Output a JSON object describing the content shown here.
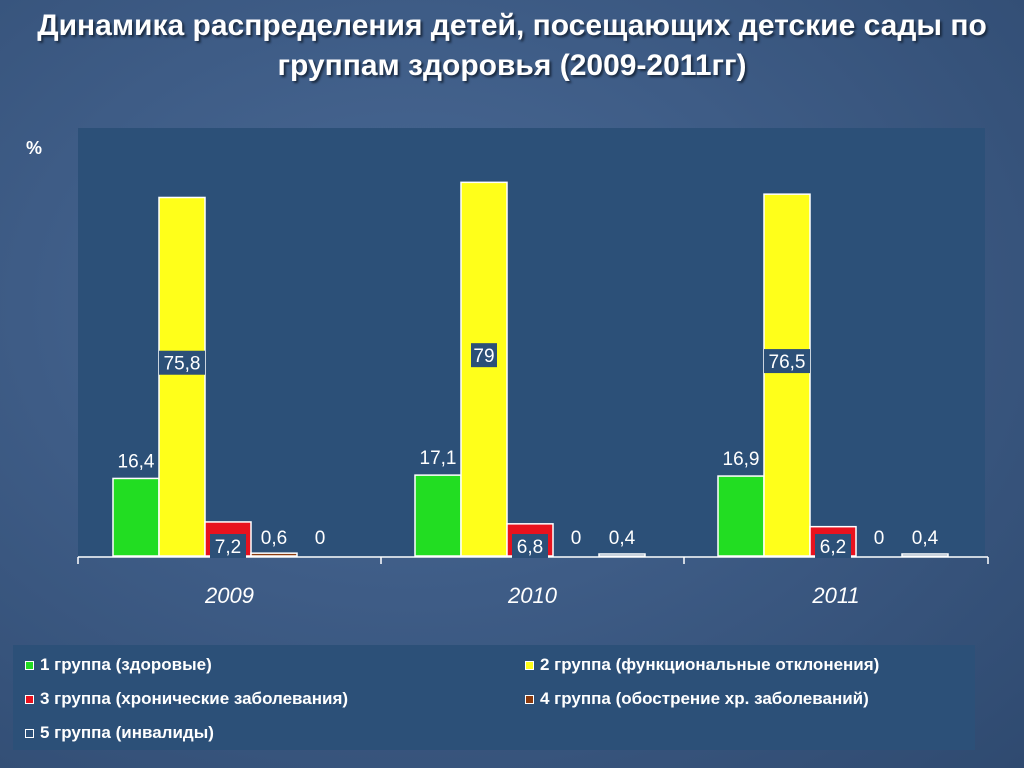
{
  "title": "Динамика распределения детей, посещающих детские сады по группам здоровья (2009-2011гг)",
  "chart_data": {
    "type": "bar",
    "title": "Динамика распределения детей, посещающих детские сады по группам здоровья (2009-2011гг)",
    "ylabel": "%",
    "xlabel": "",
    "categories": [
      "2009",
      "2010",
      "2011"
    ],
    "ylim": [
      0,
      80
    ],
    "grid": false,
    "legend_position": "bottom",
    "series": [
      {
        "name": "1 группа (здоровые)",
        "color": "#22dd22",
        "values": [
          16.4,
          17.1,
          16.9
        ],
        "labels": [
          "16,4",
          "17,1",
          "16,9"
        ]
      },
      {
        "name": "2 группа (функциональные отклонения)",
        "color": "#ffff1a",
        "values": [
          75.8,
          79,
          76.5
        ],
        "labels": [
          "75,8",
          "79",
          "76,5"
        ]
      },
      {
        "name": "3 группа (хронические заболевания)",
        "color": "#e8121e",
        "values": [
          7.2,
          6.8,
          6.2
        ],
        "labels": [
          "7,2",
          "6,8",
          "6,2"
        ]
      },
      {
        "name": "4 группа (обострение хр. заболеваний)",
        "color": "#8b3a0e",
        "values": [
          0.6,
          0,
          0
        ],
        "labels": [
          "0,6",
          "0",
          "0"
        ]
      },
      {
        "name": "5 группа (инвалиды)",
        "color": "#2c5078",
        "values": [
          0,
          0.4,
          0.4
        ],
        "labels": [
          "0",
          "0,4",
          "0,4"
        ]
      }
    ]
  }
}
